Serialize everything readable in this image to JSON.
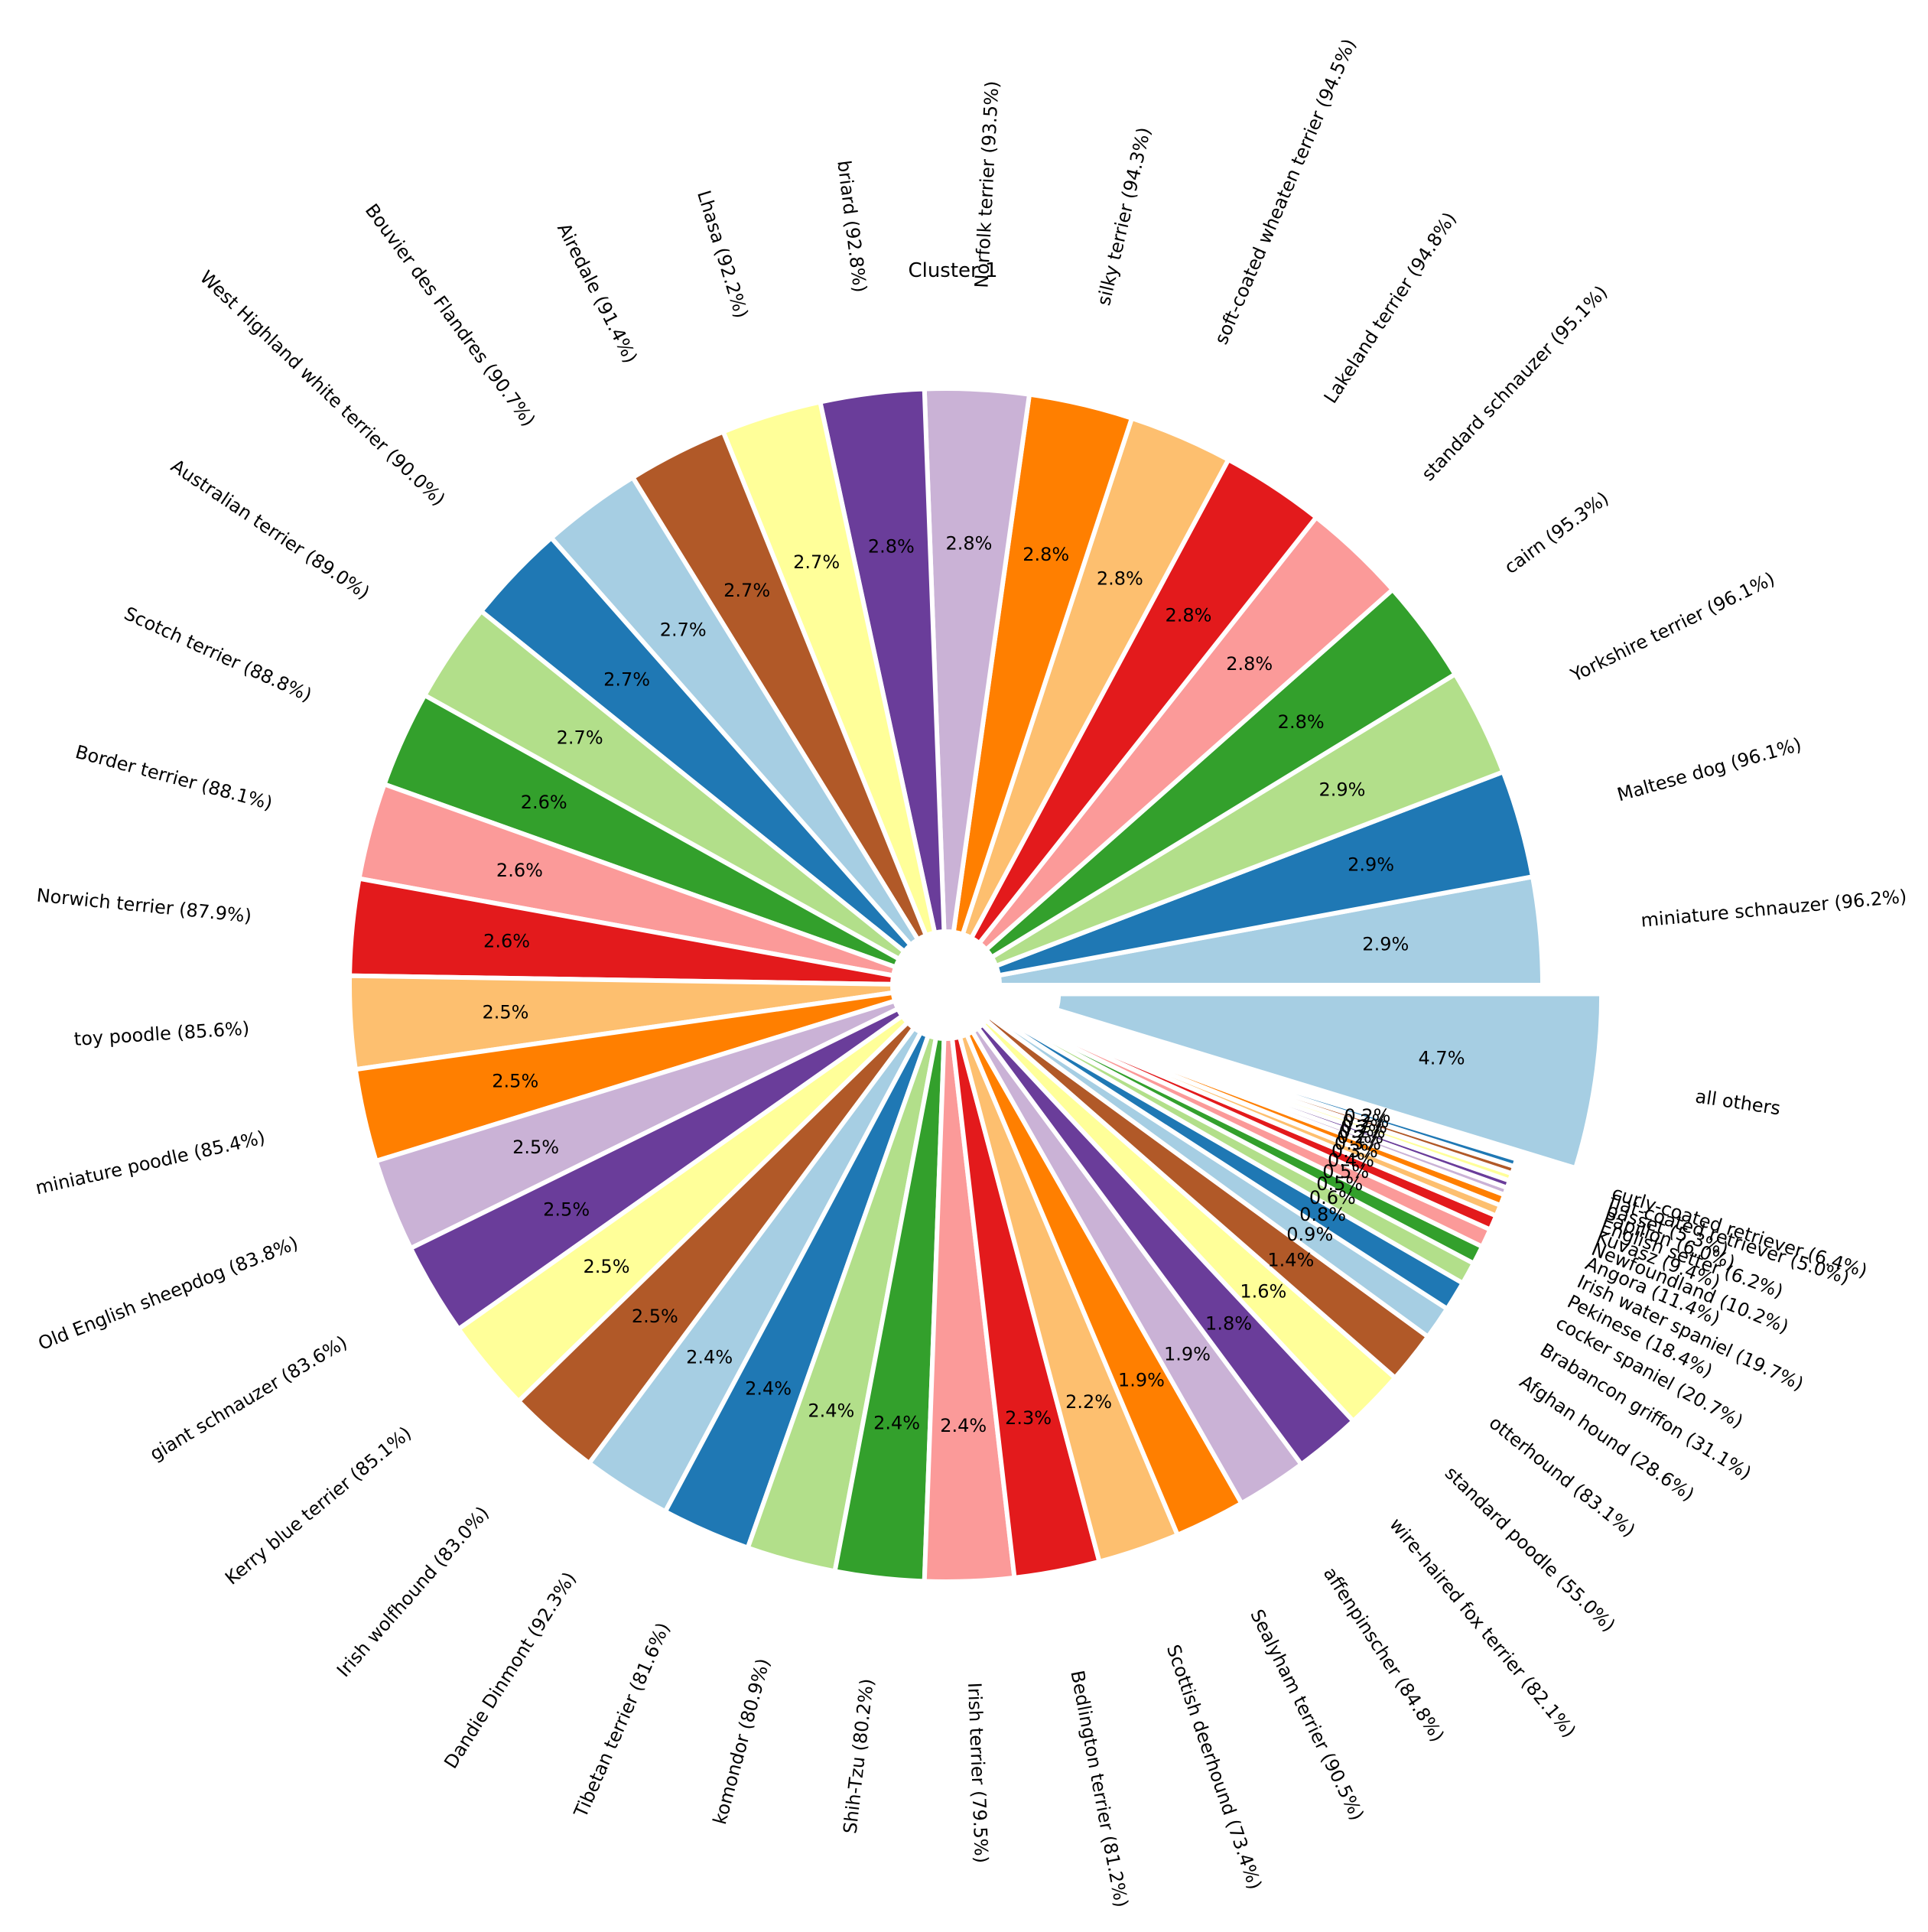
{
  "chart_data": {
    "type": "pie",
    "title": "Cluster 1",
    "exploded_slice": "all others",
    "slices": [
      {
        "label": "miniature schnauzer (96.2%)",
        "percent": 2.9,
        "pct_text": "2.9%",
        "color": "#a6cee3"
      },
      {
        "label": "Maltese dog (96.1%)",
        "percent": 2.9,
        "pct_text": "2.9%",
        "color": "#1f78b4"
      },
      {
        "label": "Yorkshire terrier (96.1%)",
        "percent": 2.9,
        "pct_text": "2.9%",
        "color": "#b2df8a"
      },
      {
        "label": "cairn (95.3%)",
        "percent": 2.8,
        "pct_text": "2.8%",
        "color": "#33a02c"
      },
      {
        "label": "standard schnauzer (95.1%)",
        "percent": 2.8,
        "pct_text": "2.8%",
        "color": "#fb9a99"
      },
      {
        "label": "Lakeland terrier (94.8%)",
        "percent": 2.8,
        "pct_text": "2.8%",
        "color": "#e31a1c"
      },
      {
        "label": "soft-coated wheaten terrier (94.5%)",
        "percent": 2.8,
        "pct_text": "2.8%",
        "color": "#fdbf6f"
      },
      {
        "label": "silky terrier (94.3%)",
        "percent": 2.8,
        "pct_text": "2.8%",
        "color": "#ff7f00"
      },
      {
        "label": "Norfolk terrier (93.5%)",
        "percent": 2.8,
        "pct_text": "2.8%",
        "color": "#cab2d6"
      },
      {
        "label": "briard (92.8%)",
        "percent": 2.8,
        "pct_text": "2.8%",
        "color": "#6a3d9a"
      },
      {
        "label": "Lhasa (92.2%)",
        "percent": 2.7,
        "pct_text": "2.7%",
        "color": "#ffff99"
      },
      {
        "label": "Airedale (91.4%)",
        "percent": 2.7,
        "pct_text": "2.7%",
        "color": "#b15928"
      },
      {
        "label": "Bouvier des Flandres (90.7%)",
        "percent": 2.7,
        "pct_text": "2.7%",
        "color": "#a6cee3"
      },
      {
        "label": "West Highland white terrier (90.0%)",
        "percent": 2.7,
        "pct_text": "2.7%",
        "color": "#1f78b4"
      },
      {
        "label": "Australian terrier (89.0%)",
        "percent": 2.7,
        "pct_text": "2.7%",
        "color": "#b2df8a"
      },
      {
        "label": "Scotch terrier (88.8%)",
        "percent": 2.6,
        "pct_text": "2.6%",
        "color": "#33a02c"
      },
      {
        "label": "Border terrier (88.1%)",
        "percent": 2.6,
        "pct_text": "2.6%",
        "color": "#fb9a99"
      },
      {
        "label": "Norwich terrier (87.9%)",
        "percent": 2.6,
        "pct_text": "2.6%",
        "color": "#e31a1c"
      },
      {
        "label": "toy poodle (85.6%)",
        "percent": 2.5,
        "pct_text": "2.5%",
        "color": "#fdbf6f"
      },
      {
        "label": "miniature poodle (85.4%)",
        "percent": 2.5,
        "pct_text": "2.5%",
        "color": "#ff7f00"
      },
      {
        "label": "Old English sheepdog (83.8%)",
        "percent": 2.5,
        "pct_text": "2.5%",
        "color": "#cab2d6"
      },
      {
        "label": "giant schnauzer (83.6%)",
        "percent": 2.5,
        "pct_text": "2.5%",
        "color": "#6a3d9a"
      },
      {
        "label": "Kerry blue terrier (85.1%)",
        "percent": 2.5,
        "pct_text": "2.5%",
        "color": "#ffff99"
      },
      {
        "label": "Irish wolfhound (83.0%)",
        "percent": 2.5,
        "pct_text": "2.5%",
        "color": "#b15928"
      },
      {
        "label": "Dandie Dinmont (92.3%)",
        "percent": 2.4,
        "pct_text": "2.4%",
        "color": "#a6cee3"
      },
      {
        "label": "Tibetan terrier (81.6%)",
        "percent": 2.4,
        "pct_text": "2.4%",
        "color": "#1f78b4"
      },
      {
        "label": "komondor (80.9%)",
        "percent": 2.4,
        "pct_text": "2.4%",
        "color": "#b2df8a"
      },
      {
        "label": "Shih-Tzu (80.2%)",
        "percent": 2.4,
        "pct_text": "2.4%",
        "color": "#33a02c"
      },
      {
        "label": "Irish terrier (79.5%)",
        "percent": 2.4,
        "pct_text": "2.4%",
        "color": "#fb9a99"
      },
      {
        "label": "Bedlington terrier (81.2%)",
        "percent": 2.3,
        "pct_text": "2.3%",
        "color": "#e31a1c"
      },
      {
        "label": "Scottish deerhound (73.4%)",
        "percent": 2.2,
        "pct_text": "2.2%",
        "color": "#fdbf6f"
      },
      {
        "label": "Sealyham terrier (90.5%)",
        "percent": 1.9,
        "pct_text": "1.9%",
        "color": "#ff7f00"
      },
      {
        "label": "affenpinscher (84.8%)",
        "percent": 1.9,
        "pct_text": "1.9%",
        "color": "#cab2d6"
      },
      {
        "label": "wire-haired fox terrier (82.1%)",
        "percent": 1.8,
        "pct_text": "1.8%",
        "color": "#6a3d9a"
      },
      {
        "label": "standard poodle (55.0%)",
        "percent": 1.6,
        "pct_text": "1.6%",
        "color": "#ffff99"
      },
      {
        "label": "otterhound (83.1%)",
        "percent": 1.4,
        "pct_text": "1.4%",
        "color": "#b15928"
      },
      {
        "label": "Afghan hound (28.6%)",
        "percent": 0.9,
        "pct_text": "0.9%",
        "color": "#a6cee3"
      },
      {
        "label": "Brabancon griffon (31.1%)",
        "percent": 0.8,
        "pct_text": "0.8%",
        "color": "#1f78b4"
      },
      {
        "label": "cocker spaniel (20.7%)",
        "percent": 0.6,
        "pct_text": "0.6%",
        "color": "#b2df8a"
      },
      {
        "label": "Pekinese (18.4%)",
        "percent": 0.5,
        "pct_text": "0.5%",
        "color": "#33a02c"
      },
      {
        "label": "Irish water spaniel (19.7%)",
        "percent": 0.5,
        "pct_text": "0.5%",
        "color": "#fb9a99"
      },
      {
        "label": "Angora (11.4%)",
        "percent": 0.4,
        "pct_text": "0.4%",
        "color": "#e31a1c"
      },
      {
        "label": "Newfoundland (10.2%)",
        "percent": 0.3,
        "pct_text": "0.3%",
        "color": "#fdbf6f"
      },
      {
        "label": "Kuvasz (9.4%)",
        "percent": 0.3,
        "pct_text": "0.3%",
        "color": "#ff7f00"
      },
      {
        "label": "English setter (6.2%)",
        "percent": 0.2,
        "pct_text": "0.2%",
        "color": "#cab2d6"
      },
      {
        "label": "Papillon (6.0%)",
        "percent": 0.2,
        "pct_text": "0.2%",
        "color": "#6a3d9a"
      },
      {
        "label": "basset (5.3%)",
        "percent": 0.2,
        "pct_text": "0.2%",
        "color": "#ffff99"
      },
      {
        "label": "flat-coated retriever (5.0%)",
        "percent": 0.2,
        "pct_text": "0.2%",
        "color": "#b15928"
      },
      {
        "label": "curly-coated retriever (6.4%)",
        "percent": 0.2,
        "pct_text": "0.2%",
        "color": "#1f78b4"
      },
      {
        "label": "all others",
        "percent": 4.7,
        "pct_text": "4.7%",
        "color": "#a6cee3"
      }
    ]
  }
}
